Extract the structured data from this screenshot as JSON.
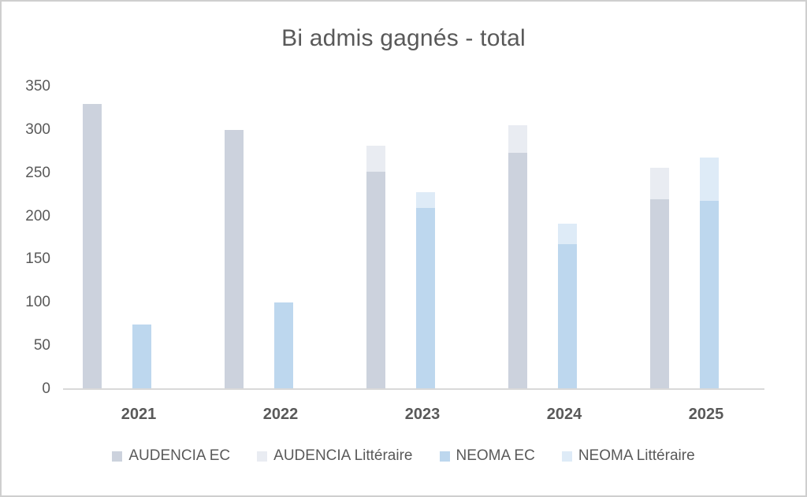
{
  "title": "Bi admis gagnés - total",
  "colors": {
    "text": "#595959",
    "axis_line": "#d9d9d9",
    "frame_border": "#cfcfcf",
    "audencia_ec": "#ccd2dd",
    "audencia_litteraire": "#e9ecf2",
    "neoma_ec": "#bdd7ee",
    "neoma_litteraire": "#deebf7"
  },
  "chart_data": {
    "type": "bar",
    "subtype": "clustered-stacked",
    "title": "Bi admis gagnés - total",
    "categories": [
      "2021",
      "2022",
      "2023",
      "2024",
      "2025"
    ],
    "series": [
      {
        "name": "AUDENCIA EC",
        "stack": "AUDENCIA",
        "color": "#ccd2dd",
        "values": [
          330,
          300,
          252,
          273,
          220
        ]
      },
      {
        "name": "AUDENCIA Littéraire",
        "stack": "AUDENCIA",
        "color": "#e9ecf2",
        "values": [
          0,
          0,
          30,
          32,
          36
        ]
      },
      {
        "name": "NEOMA EC",
        "stack": "NEOMA",
        "color": "#bdd7ee",
        "values": [
          75,
          100,
          210,
          168,
          218
        ]
      },
      {
        "name": "NEOMA Littéraire",
        "stack": "NEOMA",
        "color": "#deebf7",
        "values": [
          0,
          0,
          18,
          23,
          50
        ]
      }
    ],
    "ylim": [
      0,
      350
    ],
    "ytick_step": 50,
    "yticks": [
      0,
      50,
      100,
      150,
      200,
      250,
      300,
      350
    ],
    "grid": false,
    "legend_position": "bottom",
    "legend_items": [
      "AUDENCIA EC",
      "AUDENCIA Littéraire",
      "NEOMA EC",
      "NEOMA Littéraire"
    ]
  }
}
